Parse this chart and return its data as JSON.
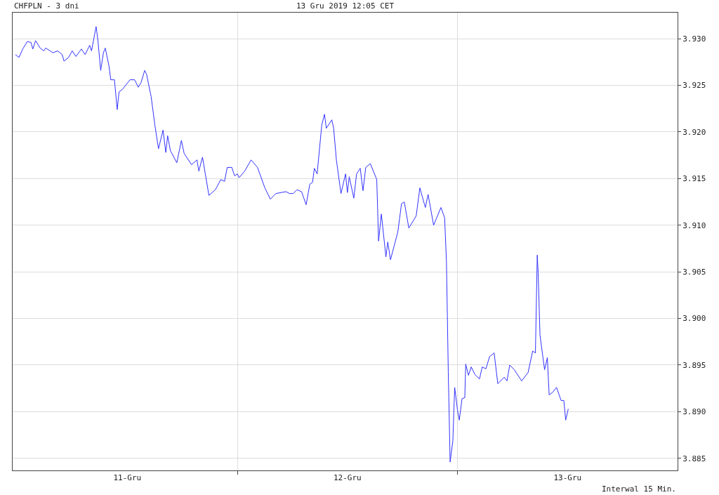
{
  "chart_data": {
    "type": "line",
    "title": "CHFPLN - 3 dni",
    "subtitle": "13 Gru 2019 12:05 CET",
    "annotations": [
      "Interwal 15 Min."
    ],
    "x": [
      "2019-12-10T23:48",
      "2019-12-11T00:12",
      "2019-12-11T00:36",
      "2019-12-11T01:06",
      "2019-12-11T01:30",
      "2019-12-11T01:42",
      "2019-12-11T02:00",
      "2019-12-11T02:30",
      "2019-12-11T02:54",
      "2019-12-11T03:06",
      "2019-12-11T03:54",
      "2019-12-11T04:24",
      "2019-12-11T04:54",
      "2019-12-11T05:06",
      "2019-12-11T05:36",
      "2019-12-11T06:00",
      "2019-12-11T06:24",
      "2019-12-11T07:00",
      "2019-12-11T07:24",
      "2019-12-11T07:54",
      "2019-12-11T08:06",
      "2019-12-11T08:36",
      "2019-12-11T08:48",
      "2019-12-11T09:06",
      "2019-12-11T09:24",
      "2019-12-11T09:36",
      "2019-12-11T10:00",
      "2019-12-11T10:12",
      "2019-12-11T10:36",
      "2019-12-11T10:54",
      "2019-12-11T11:06",
      "2019-12-11T11:30",
      "2019-12-11T12:18",
      "2019-12-11T12:48",
      "2019-12-11T13:12",
      "2019-12-11T13:30",
      "2019-12-11T13:54",
      "2019-12-11T14:06",
      "2019-12-11T14:36",
      "2019-12-11T15:00",
      "2019-12-11T15:24",
      "2019-12-11T15:54",
      "2019-12-11T16:12",
      "2019-12-11T16:24",
      "2019-12-11T16:42",
      "2019-12-11T17:24",
      "2019-12-11T17:54",
      "2019-12-11T18:12",
      "2019-12-11T19:00",
      "2019-12-11T19:36",
      "2019-12-11T19:48",
      "2019-12-11T20:12",
      "2019-12-11T20:54",
      "2019-12-11T21:36",
      "2019-12-11T22:12",
      "2019-12-11T22:36",
      "2019-12-11T22:54",
      "2019-12-11T23:24",
      "2019-12-11T23:42",
      "2019-12-12T00:00",
      "2019-12-12T00:12",
      "2019-12-12T00:48",
      "2019-12-12T01:30",
      "2019-12-12T02:12",
      "2019-12-12T03:00",
      "2019-12-12T03:36",
      "2019-12-12T04:12",
      "2019-12-12T05:18",
      "2019-12-12T05:42",
      "2019-12-12T06:06",
      "2019-12-12T06:30",
      "2019-12-12T07:00",
      "2019-12-12T07:30",
      "2019-12-12T07:54",
      "2019-12-12T08:12",
      "2019-12-12T08:24",
      "2019-12-12T08:42",
      "2019-12-12T09:12",
      "2019-12-12T09:30",
      "2019-12-12T09:42",
      "2019-12-12T10:18",
      "2019-12-12T10:30",
      "2019-12-12T10:48",
      "2019-12-12T11:18",
      "2019-12-12T11:48",
      "2019-12-12T12:00",
      "2019-12-12T12:12",
      "2019-12-12T12:42",
      "2019-12-12T13:00",
      "2019-12-12T13:24",
      "2019-12-12T13:42",
      "2019-12-12T14:00",
      "2019-12-12T14:30",
      "2019-12-12T15:12",
      "2019-12-12T15:24",
      "2019-12-12T15:42",
      "2019-12-12T16:12",
      "2019-12-12T16:24",
      "2019-12-12T16:42",
      "2019-12-12T17:30",
      "2019-12-12T17:54",
      "2019-12-12T18:12",
      "2019-12-12T18:42",
      "2019-12-12T19:30",
      "2019-12-12T19:54",
      "2019-12-12T20:30",
      "2019-12-12T20:48",
      "2019-12-12T21:24",
      "2019-12-12T22:12",
      "2019-12-12T22:36",
      "2019-12-12T22:48",
      "2019-12-12T22:54",
      "2019-12-12T23:00",
      "2019-12-12T23:06",
      "2019-12-12T23:12",
      "2019-12-12T23:30",
      "2019-12-12T23:36",
      "2019-12-12T23:42",
      "2019-12-13T00:00",
      "2019-12-13T00:12",
      "2019-12-13T00:30",
      "2019-12-13T00:48",
      "2019-12-13T00:54",
      "2019-12-13T01:12",
      "2019-12-13T01:30",
      "2019-12-13T01:54",
      "2019-12-13T02:24",
      "2019-12-13T02:42",
      "2019-12-13T03:06",
      "2019-12-13T03:30",
      "2019-12-13T04:00",
      "2019-12-13T04:24",
      "2019-12-13T05:06",
      "2019-12-13T05:24",
      "2019-12-13T05:42",
      "2019-12-13T06:12",
      "2019-12-13T07:00",
      "2019-12-13T07:42",
      "2019-12-13T08:12",
      "2019-12-13T08:30",
      "2019-12-13T08:42",
      "2019-12-13T08:48",
      "2019-12-13T09:00",
      "2019-12-13T09:30",
      "2019-12-13T09:48",
      "2019-12-13T10:00",
      "2019-12-13T10:24",
      "2019-12-13T10:48",
      "2019-12-13T11:18",
      "2019-12-13T11:36",
      "2019-12-13T11:48",
      "2019-12-13T12:05"
    ],
    "series": [
      {
        "color": "#3333ff",
        "values": [
          3.9283,
          3.928,
          3.9289,
          3.9297,
          3.9296,
          3.9289,
          3.9298,
          3.929,
          3.9287,
          3.929,
          3.9285,
          3.9287,
          3.9283,
          3.9276,
          3.928,
          3.9287,
          3.9281,
          3.9289,
          3.9283,
          3.9293,
          3.9287,
          3.9313,
          3.9298,
          3.9266,
          3.9285,
          3.929,
          3.9271,
          3.9256,
          3.9256,
          3.9224,
          3.9243,
          3.9246,
          3.9256,
          3.9256,
          3.9248,
          3.9253,
          3.9266,
          3.9262,
          3.9238,
          3.9208,
          3.9182,
          3.9202,
          3.9178,
          3.9196,
          3.918,
          3.9167,
          3.9191,
          3.9177,
          3.9165,
          3.917,
          3.9158,
          3.9173,
          3.9132,
          3.9138,
          3.9149,
          3.9147,
          3.9162,
          3.9162,
          3.9153,
          3.9155,
          3.9151,
          3.9158,
          3.917,
          3.9162,
          3.914,
          3.9128,
          3.9134,
          3.9136,
          3.9134,
          3.9134,
          3.9138,
          3.9136,
          3.9122,
          3.9144,
          3.9146,
          3.9161,
          3.9155,
          3.9207,
          3.9219,
          3.9204,
          3.9213,
          3.9204,
          3.917,
          3.9134,
          3.9155,
          3.9135,
          3.9152,
          3.9129,
          3.9155,
          3.9161,
          3.9137,
          3.9162,
          3.9166,
          3.9149,
          3.9083,
          3.9112,
          3.9066,
          3.9082,
          3.9063,
          3.9093,
          3.9123,
          3.9125,
          3.9097,
          3.911,
          3.914,
          3.9119,
          3.9133,
          3.91,
          3.9119,
          3.9108,
          3.9061,
          3.9003,
          3.8942,
          3.8895,
          3.8846,
          3.8869,
          3.8899,
          3.8926,
          3.8902,
          3.8891,
          3.8914,
          3.8915,
          3.8951,
          3.8939,
          3.8948,
          3.894,
          3.8935,
          3.8948,
          3.8946,
          3.8959,
          3.8963,
          3.893,
          3.8937,
          3.8933,
          3.895,
          3.8945,
          3.8933,
          3.8942,
          3.8965,
          3.8963,
          3.9068,
          3.9049,
          3.8982,
          3.8945,
          3.8958,
          3.8918,
          3.8921,
          3.8926,
          3.8912,
          3.8912,
          3.8891,
          3.8903
        ]
      }
    ],
    "xlim": [
      "2019-12-10T23:30",
      "2019-12-14T00:00"
    ],
    "xticks": [
      {
        "value": "2019-12-11T12:00",
        "label": "11-Gru"
      },
      {
        "value": "2019-12-12T00:00",
        "label": null
      },
      {
        "value": "2019-12-12T12:00",
        "label": "12-Gru"
      },
      {
        "value": "2019-12-13T00:00",
        "label": null
      },
      {
        "value": "2019-12-13T12:00",
        "label": "13-Gru"
      }
    ],
    "ylim": [
      3.8837,
      3.9328
    ],
    "yticks": [
      {
        "value": 3.885,
        "label": "3.885"
      },
      {
        "value": 3.89,
        "label": "3.890"
      },
      {
        "value": 3.895,
        "label": "3.895"
      },
      {
        "value": 3.9,
        "label": "3.900"
      },
      {
        "value": 3.905,
        "label": "3.905"
      },
      {
        "value": 3.91,
        "label": "3.910"
      },
      {
        "value": 3.915,
        "label": "3.915"
      },
      {
        "value": 3.92,
        "label": "3.920"
      },
      {
        "value": 3.925,
        "label": "3.925"
      },
      {
        "value": 3.93,
        "label": "3.930"
      }
    ],
    "grid": true,
    "marker": "none",
    "line_style": "solid"
  }
}
